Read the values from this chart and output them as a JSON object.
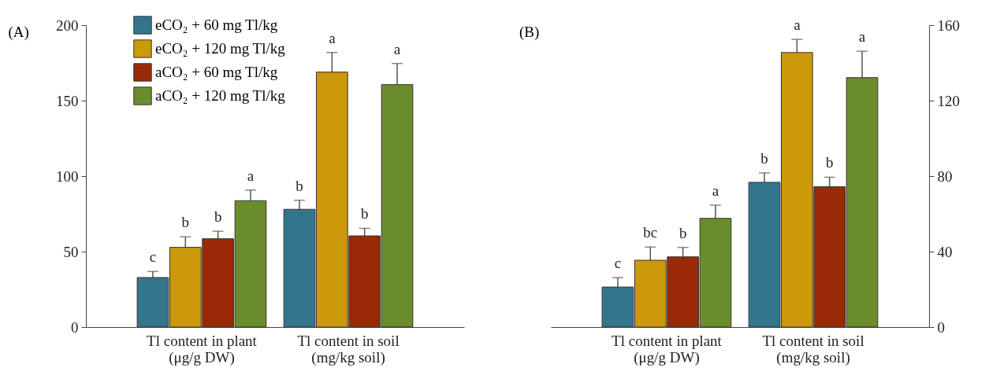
{
  "chart_data": [
    {
      "type": "bar",
      "title": "(A)",
      "categories": [
        "Tl content in plant\n(μg/g DW)",
        "Tl content in soil\n(mg/kg soil)"
      ],
      "ylim": [
        0,
        200
      ],
      "yticks": [
        0,
        50,
        100,
        150,
        200
      ],
      "grid": false,
      "legend": "top left",
      "series": [
        {
          "name": "eCO₂ + 60 mg Tl/kg",
          "color": "#33768c",
          "values": [
            32.8,
            78
          ],
          "errors": [
            4,
            6
          ],
          "value_labels": [
            "c",
            "b"
          ]
        },
        {
          "name": "eCO₂ + 120 mg Tl/kg",
          "color": "#cc990a",
          "values": [
            52.8,
            168.9
          ],
          "errors": [
            7,
            13
          ],
          "value_labels": [
            "b",
            "a"
          ]
        },
        {
          "name": "aCO₂ + 60 mg Tl/kg",
          "color": "#992a08",
          "values": [
            58.5,
            60.4
          ],
          "errors": [
            5,
            5
          ],
          "value_labels": [
            "b",
            "b"
          ]
        },
        {
          "name": "aCO₂ + 120 mg Tl/kg",
          "color": "#6b8c2b",
          "values": [
            83.7,
            160.6
          ],
          "errors": [
            7,
            14
          ],
          "value_labels": [
            "a",
            "a"
          ]
        }
      ]
    },
    {
      "type": "bar",
      "title": "(B)",
      "categories": [
        "Tl content in plant\n(μg/g DW)",
        "Tl content in soil\n(mg/kg soil)"
      ],
      "y2lim": [
        0,
        160
      ],
      "y2ticks": [
        0,
        40,
        80,
        120,
        160
      ],
      "grid": false,
      "legend": false,
      "series": [
        {
          "color": "#33768c",
          "axis": "y2",
          "values": [
            21.2,
            76.7
          ],
          "errors": [
            5,
            5
          ],
          "value_labels": [
            "c",
            "b"
          ]
        },
        {
          "color": "#cc990a",
          "axis": "y2",
          "values": [
            35.4,
            145.5
          ],
          "errors": [
            7,
            7
          ],
          "value_labels": [
            "bc",
            "a"
          ]
        },
        {
          "color": "#992a08",
          "axis": "y2",
          "values": [
            37.2,
            74.4
          ],
          "errors": [
            5,
            5
          ],
          "value_labels": [
            "b",
            "b"
          ]
        },
        {
          "color": "#6b8c2b",
          "axis": "y2",
          "values": [
            57.6,
            132.2
          ],
          "errors": [
            7,
            14
          ],
          "value_labels": [
            "a",
            "a"
          ]
        }
      ]
    }
  ]
}
